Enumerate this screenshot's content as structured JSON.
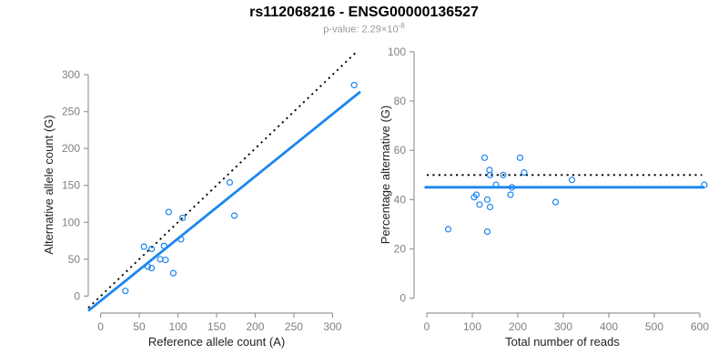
{
  "header": {
    "title": "rs112068216 - ENSG00000136527",
    "subtitle_base": "p-value: 2.29×10",
    "subtitle_exponent": "-8"
  },
  "colors": {
    "point_blue": "#1C86EE",
    "fit_line_blue": "#1C86EE",
    "reference_line_black": "#000000",
    "axis_line_gray": "#999999",
    "tick_label_gray": "#808080",
    "axis_title_color": "#222222",
    "subtitle_gray": "#999999"
  },
  "chart_data": [
    {
      "type": "scatter",
      "panel": "left",
      "xlabel": "Reference allele count (A)",
      "ylabel": "Alternative allele count (G)",
      "xticks": [
        0,
        50,
        100,
        150,
        200,
        250,
        300
      ],
      "yticks": [
        0,
        50,
        100,
        150,
        200,
        250,
        300
      ],
      "xlim": [
        -16,
        336
      ],
      "ylim": [
        -23,
        331
      ],
      "grid": false,
      "legend": null,
      "points": [
        [
          32,
          7
        ],
        [
          56,
          67
        ],
        [
          61,
          40
        ],
        [
          66,
          38
        ],
        [
          66,
          64
        ],
        [
          77,
          50
        ],
        [
          82,
          68
        ],
        [
          84,
          49
        ],
        [
          88,
          114
        ],
        [
          94,
          31
        ],
        [
          104,
          77
        ],
        [
          106,
          106
        ],
        [
          167,
          154
        ],
        [
          173,
          109
        ],
        [
          328,
          286
        ]
      ],
      "lines": [
        {
          "name": "identity-reference-line",
          "style": "dotted",
          "color": "#000000",
          "x1": -16,
          "y1": -16,
          "x2": 331,
          "y2": 331
        },
        {
          "name": "fitted-regression-line",
          "style": "solid",
          "color": "#1C86EE",
          "x1": -16,
          "y1": -20,
          "x2": 336,
          "y2": 277
        }
      ]
    },
    {
      "type": "scatter",
      "panel": "right",
      "xlabel": "Total number of reads",
      "ylabel": "Percentage alternative (G)",
      "xticks": [
        0,
        100,
        200,
        300,
        400,
        500,
        600
      ],
      "yticks": [
        0,
        20,
        40,
        60,
        80,
        100
      ],
      "xlim": [
        -28,
        634
      ],
      "ylim": [
        -6,
        104
      ],
      "grid": false,
      "legend": null,
      "points": [
        [
          47,
          28
        ],
        [
          104,
          41
        ],
        [
          109,
          42
        ],
        [
          116,
          38
        ],
        [
          127,
          57
        ],
        [
          133,
          27
        ],
        [
          133,
          40
        ],
        [
          138,
          52
        ],
        [
          139,
          37
        ],
        [
          139,
          50
        ],
        [
          152,
          46
        ],
        [
          168,
          50
        ],
        [
          184,
          42
        ],
        [
          187,
          45
        ],
        [
          205,
          57
        ],
        [
          214,
          51
        ],
        [
          283,
          39
        ],
        [
          319,
          48
        ],
        [
          610,
          46
        ]
      ],
      "lines": [
        {
          "name": "expected-50pct-line",
          "style": "dotted",
          "color": "#000000",
          "x1": 0,
          "y1": 50,
          "x2": 605,
          "y2": 50
        },
        {
          "name": "fitted-percentage-line",
          "style": "solid",
          "color": "#1C86EE",
          "x1": -5,
          "y1": 45,
          "x2": 610,
          "y2": 45
        }
      ]
    }
  ]
}
